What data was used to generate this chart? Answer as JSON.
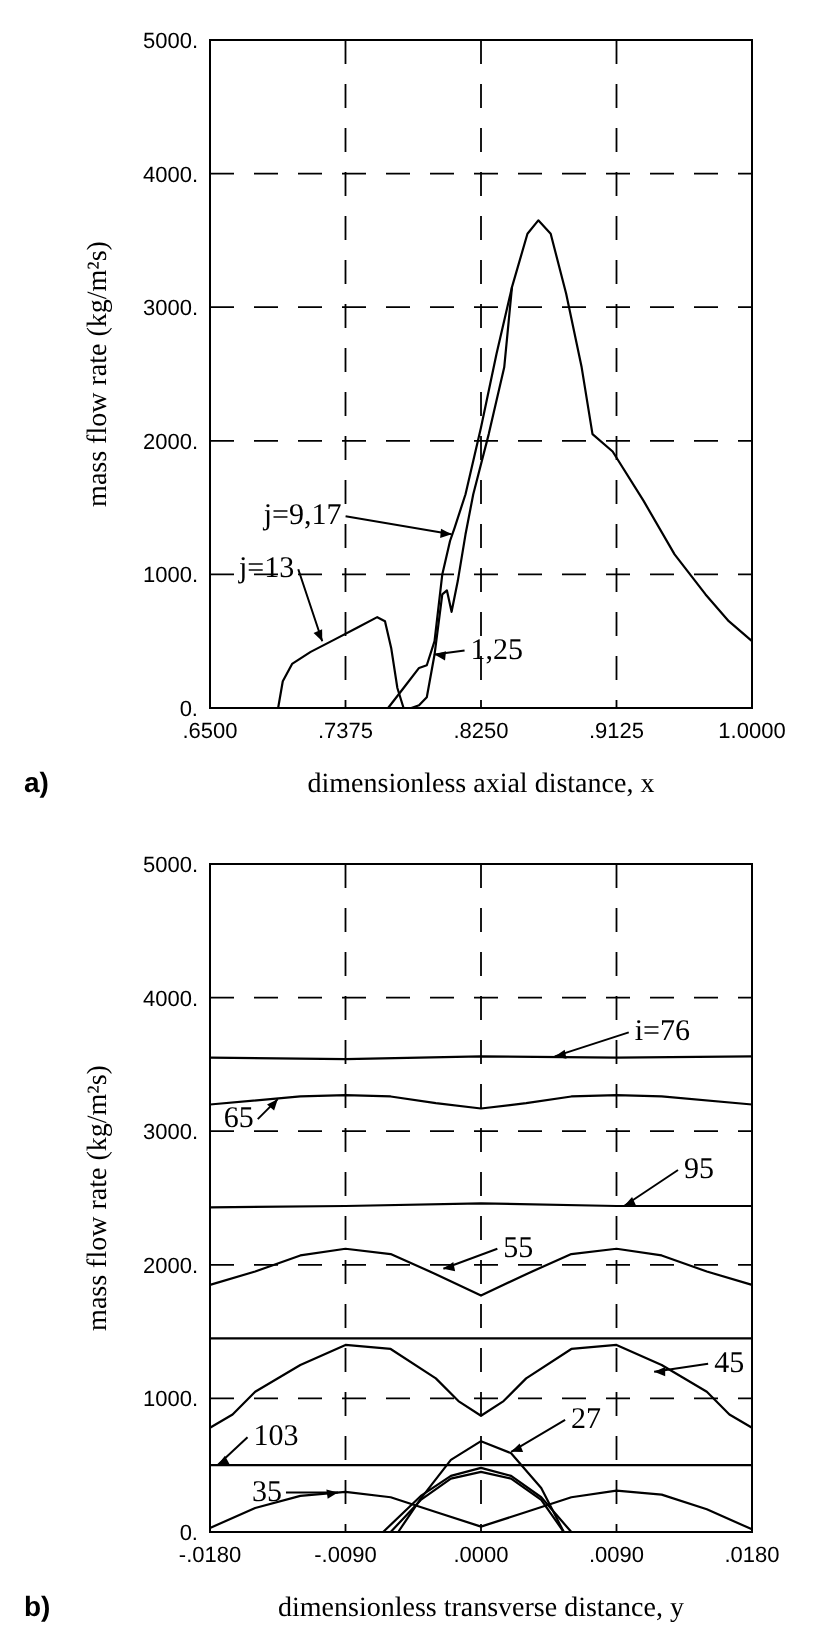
{
  "chart_data": [
    {
      "type": "line",
      "title": "a)",
      "xlabel": "dimensionless axial distance, x",
      "ylabel": "mass flow rate (kg/m²s)",
      "xlim": [
        0.65,
        1.0
      ],
      "xticks": [
        {
          "value": 0.65,
          "label": ".6500"
        },
        {
          "value": 0.7375,
          "label": ".7375"
        },
        {
          "value": 0.825,
          "label": ".8250"
        },
        {
          "value": 0.9125,
          "label": ".9125"
        },
        {
          "value": 1.0,
          "label": "1.0000"
        }
      ],
      "ylim": [
        0,
        5000
      ],
      "yticks": [
        {
          "value": 0,
          "label": "0."
        },
        {
          "value": 1000,
          "label": "1000."
        },
        {
          "value": 2000,
          "label": "2000."
        },
        {
          "value": 3000,
          "label": "3000."
        },
        {
          "value": 4000,
          "label": "4000."
        },
        {
          "value": 5000,
          "label": "5000."
        }
      ],
      "grid": true,
      "line_style": "solid",
      "series": [
        {
          "color": "#000000",
          "x": [
            0.694,
            0.697,
            0.703,
            0.715,
            0.73,
            0.745,
            0.758,
            0.763,
            0.767,
            0.771,
            0.775
          ],
          "values": [
            0,
            200,
            330,
            420,
            510,
            600,
            680,
            650,
            450,
            150,
            0
          ]
        },
        {
          "color": "#000000",
          "x": [
            0.765,
            0.775,
            0.785,
            0.79,
            0.795,
            0.8,
            0.805,
            0.808,
            0.815,
            0.825,
            0.835,
            0.845,
            0.855,
            0.862,
            0.87,
            0.88,
            0.89,
            0.897,
            0.91,
            0.93,
            0.95,
            0.97,
            0.985,
            1.0
          ],
          "values": [
            0,
            150,
            300,
            320,
            500,
            1000,
            1250,
            1350,
            1600,
            2100,
            2650,
            3150,
            3550,
            3650,
            3550,
            3100,
            2550,
            2050,
            1920,
            1550,
            1150,
            850,
            650,
            500
          ]
        },
        {
          "color": "#000000",
          "x": [
            0.78,
            0.785,
            0.79,
            0.795,
            0.8,
            0.803,
            0.806,
            0.81,
            0.815,
            0.82,
            0.83,
            0.84,
            0.845
          ],
          "values": [
            0,
            20,
            80,
            400,
            850,
            880,
            720,
            950,
            1300,
            1600,
            2050,
            2550,
            3150
          ]
        }
      ],
      "annotations": [
        {
          "text": "j=9,17",
          "x": 0.806,
          "y": 1300
        },
        {
          "text": "j=13",
          "x": 0.7225,
          "y": 500
        },
        {
          "text": "1,25",
          "x": 0.795,
          "y": 400
        }
      ]
    },
    {
      "type": "line",
      "title": "b)",
      "xlabel": "dimensionless transverse distance, y",
      "ylabel": "mass flow rate (kg/m²s)",
      "xlim": [
        -0.018,
        0.018
      ],
      "xticks": [
        {
          "value": -0.018,
          "label": "-.0180"
        },
        {
          "value": -0.009,
          "label": "-.0090"
        },
        {
          "value": 0,
          "label": ".0000"
        },
        {
          "value": 0.009,
          "label": ".0090"
        },
        {
          "value": 0.018,
          "label": ".0180"
        }
      ],
      "ylim": [
        0,
        5000
      ],
      "yticks": [
        {
          "value": 0,
          "label": "0."
        },
        {
          "value": 1000,
          "label": "1000."
        },
        {
          "value": 2000,
          "label": "2000."
        },
        {
          "value": 3000,
          "label": "3000."
        },
        {
          "value": 4000,
          "label": "4000."
        },
        {
          "value": 5000,
          "label": "5000."
        }
      ],
      "grid": true,
      "line_style": "solid",
      "series": [
        {
          "color": "#000000",
          "x": [
            -0.018,
            -0.009,
            0,
            0.009,
            0.018
          ],
          "values": [
            3550,
            3540,
            3560,
            3550,
            3560
          ]
        },
        {
          "color": "#000000",
          "x": [
            -0.018,
            -0.012,
            -0.009,
            -0.006,
            -0.003,
            0,
            0.003,
            0.006,
            0.009,
            0.012,
            0.018
          ],
          "values": [
            3200,
            3260,
            3270,
            3260,
            3210,
            3170,
            3210,
            3260,
            3270,
            3260,
            3200
          ]
        },
        {
          "color": "#000000",
          "x": [
            -0.018,
            -0.009,
            0,
            0.009,
            0.018
          ],
          "values": [
            2430,
            2440,
            2460,
            2440,
            2440
          ]
        },
        {
          "color": "#000000",
          "x": [
            -0.018,
            -0.015,
            -0.012,
            -0.009,
            -0.006,
            -0.003,
            0,
            0.003,
            0.006,
            0.009,
            0.012,
            0.015,
            0.018
          ],
          "values": [
            1850,
            1950,
            2070,
            2120,
            2080,
            1930,
            1770,
            1930,
            2080,
            2120,
            2070,
            1950,
            1850
          ]
        },
        {
          "color": "#000000",
          "x": [
            -0.018,
            0.018
          ],
          "values": [
            1450,
            1450
          ]
        },
        {
          "color": "#000000",
          "x": [
            -0.018,
            -0.0165,
            -0.015,
            -0.012,
            -0.009,
            -0.006,
            -0.003,
            -0.0015,
            0,
            0.0015,
            0.003,
            0.006,
            0.009,
            0.012,
            0.015,
            0.0165,
            0.018
          ],
          "values": [
            780,
            880,
            1050,
            1250,
            1400,
            1370,
            1150,
            980,
            870,
            980,
            1150,
            1370,
            1400,
            1250,
            1050,
            880,
            780
          ]
        },
        {
          "color": "#000000",
          "x": [
            -0.018,
            0.018
          ],
          "values": [
            500,
            500
          ]
        },
        {
          "color": "#000000",
          "x": [
            -0.0055,
            -0.004,
            -0.002,
            0,
            0.002,
            0.004,
            0.0055
          ],
          "values": [
            0,
            250,
            540,
            680,
            590,
            330,
            0
          ]
        },
        {
          "color": "#000000",
          "x": [
            -0.0065,
            -0.004,
            -0.002,
            0,
            0.002,
            0.004,
            0.006
          ],
          "values": [
            0,
            270,
            420,
            480,
            420,
            260,
            0
          ]
        },
        {
          "color": "#000000",
          "x": [
            -0.006,
            -0.004,
            -0.002,
            0,
            0.002,
            0.004,
            0.0055
          ],
          "values": [
            0,
            240,
            400,
            450,
            400,
            240,
            0
          ]
        },
        {
          "color": "#000000",
          "x": [
            -0.018,
            -0.015,
            -0.012,
            -0.009,
            -0.006,
            -0.003,
            0,
            0.003,
            0.006,
            0.009,
            0.012,
            0.015,
            0.018
          ],
          "values": [
            30,
            180,
            270,
            300,
            260,
            150,
            40,
            150,
            260,
            310,
            280,
            170,
            20
          ]
        }
      ],
      "annotations": [
        {
          "text": "i=76",
          "x": 0.0049,
          "y": 3560
        },
        {
          "text": "65",
          "x": -0.0135,
          "y": 3240
        },
        {
          "text": "95",
          "x": 0.0095,
          "y": 2440
        },
        {
          "text": "55",
          "x": -0.0025,
          "y": 1970
        },
        {
          "text": "45",
          "x": 0.0115,
          "y": 1200
        },
        {
          "text": "103",
          "x": -0.0175,
          "y": 500
        },
        {
          "text": "27",
          "x": 0.002,
          "y": 600
        },
        {
          "text": "35",
          "x": -0.0095,
          "y": 295
        }
      ]
    }
  ]
}
